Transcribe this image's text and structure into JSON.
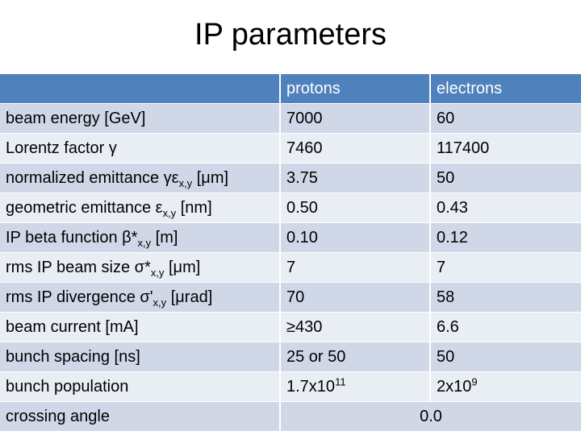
{
  "title": "IP parameters",
  "table": {
    "headers": [
      "",
      "protons",
      "electrons"
    ],
    "rows": [
      {
        "label": "beam energy [GeV]",
        "protons": "7000",
        "electrons": "60"
      },
      {
        "label": "Lorentz factor γ",
        "protons": "7460",
        "electrons": "117400"
      },
      {
        "label": "normalized emittance γε",
        "label_sub": "x,y",
        "label_after": " [μm]",
        "protons": "3.75",
        "electrons": "50"
      },
      {
        "label": "geometric emittance ε",
        "label_sub": "x,y",
        "label_after": " [nm]",
        "protons": "0.50",
        "electrons": "0.43"
      },
      {
        "label": "IP beta function β*",
        "label_sub": "x,y",
        "label_after": " [m]",
        "protons": "0.10",
        "electrons": "0.12"
      },
      {
        "label": "rms IP beam size σ*",
        "label_sub": "x,y",
        "label_after": " [μm]",
        "protons": "7",
        "electrons": "7"
      },
      {
        "label": "rms IP divergence σ'",
        "label_sub": "x,y",
        "label_after": " [μrad]",
        "protons": "70",
        "electrons": "58"
      },
      {
        "label": "beam current [mA]",
        "protons": "≥430",
        "electrons": "6.6"
      },
      {
        "label": "bunch spacing [ns]",
        "protons": "25 or 50",
        "electrons": "50"
      },
      {
        "label": "bunch population",
        "protons": "1.7x10",
        "protons_sup": "11",
        "electrons": "2x10",
        "electrons_sup": "9"
      }
    ],
    "crossing": {
      "label": "crossing angle",
      "value": "0.0"
    }
  }
}
